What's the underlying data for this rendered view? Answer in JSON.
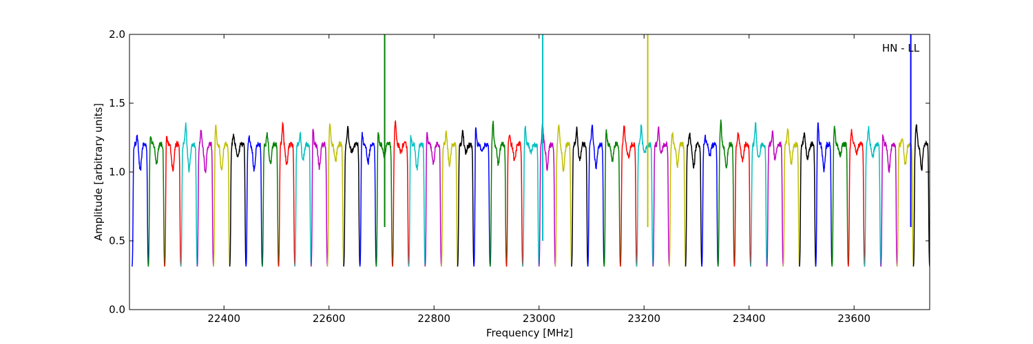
{
  "chart_data": {
    "type": "line",
    "title": "",
    "annotation": "HN - LL",
    "annotation_position": "top-right",
    "xlabel": "Frequency [MHz]",
    "ylabel": "Amplitude [arbitrary units]",
    "xlim": [
      22220,
      23744
    ],
    "ylim": [
      0.0,
      2.0
    ],
    "xticks": [
      22400,
      22600,
      22800,
      23000,
      23200,
      23400,
      23600
    ],
    "xtick_labels": [
      "22400",
      "22600",
      "22800",
      "23000",
      "23200",
      "23400",
      "23600"
    ],
    "yticks": [
      0.0,
      0.5,
      1.0,
      1.5,
      2.0
    ],
    "ytick_labels": [
      "0.0",
      "0.5",
      "1.0",
      "1.5",
      "2.0"
    ],
    "grid": false,
    "legend": "none",
    "color_cycle": [
      "#0000ff",
      "#008000",
      "#ff0000",
      "#00bfbf",
      "#bf00bf",
      "#bfbf00",
      "#000000"
    ],
    "channel_width_mhz": 31,
    "channel_start_mhz": [
      22225,
      22256,
      22287,
      22318,
      22349,
      22380,
      22411,
      22442,
      22473,
      22504,
      22535,
      22566,
      22597,
      22628,
      22659,
      22690,
      22721,
      22752,
      22783,
      22814,
      22845,
      22876,
      22907,
      22938,
      22969,
      23000,
      23031,
      23062,
      23093,
      23124,
      23155,
      23186,
      23217,
      23248,
      23279,
      23310,
      23341,
      23372,
      23403,
      23434,
      23465,
      23496,
      23527,
      23558,
      23589,
      23620,
      23651,
      23682,
      23713
    ],
    "nominal_passband_level": 1.2,
    "nominal_edge_level": 0.3,
    "spikes": [
      {
        "x": 22706,
        "y_top": 2.0,
        "y_bottom": 0.6,
        "color": "#008000"
      },
      {
        "x": 23007,
        "y_top": 2.0,
        "y_bottom": 0.5,
        "color": "#00bfbf"
      },
      {
        "x": 23207,
        "y_top": 2.0,
        "y_bottom": 0.6,
        "color": "#bfbf00"
      },
      {
        "x": 23708,
        "y_top": 2.0,
        "y_bottom": 0.6,
        "color": "#0000ff"
      }
    ]
  }
}
